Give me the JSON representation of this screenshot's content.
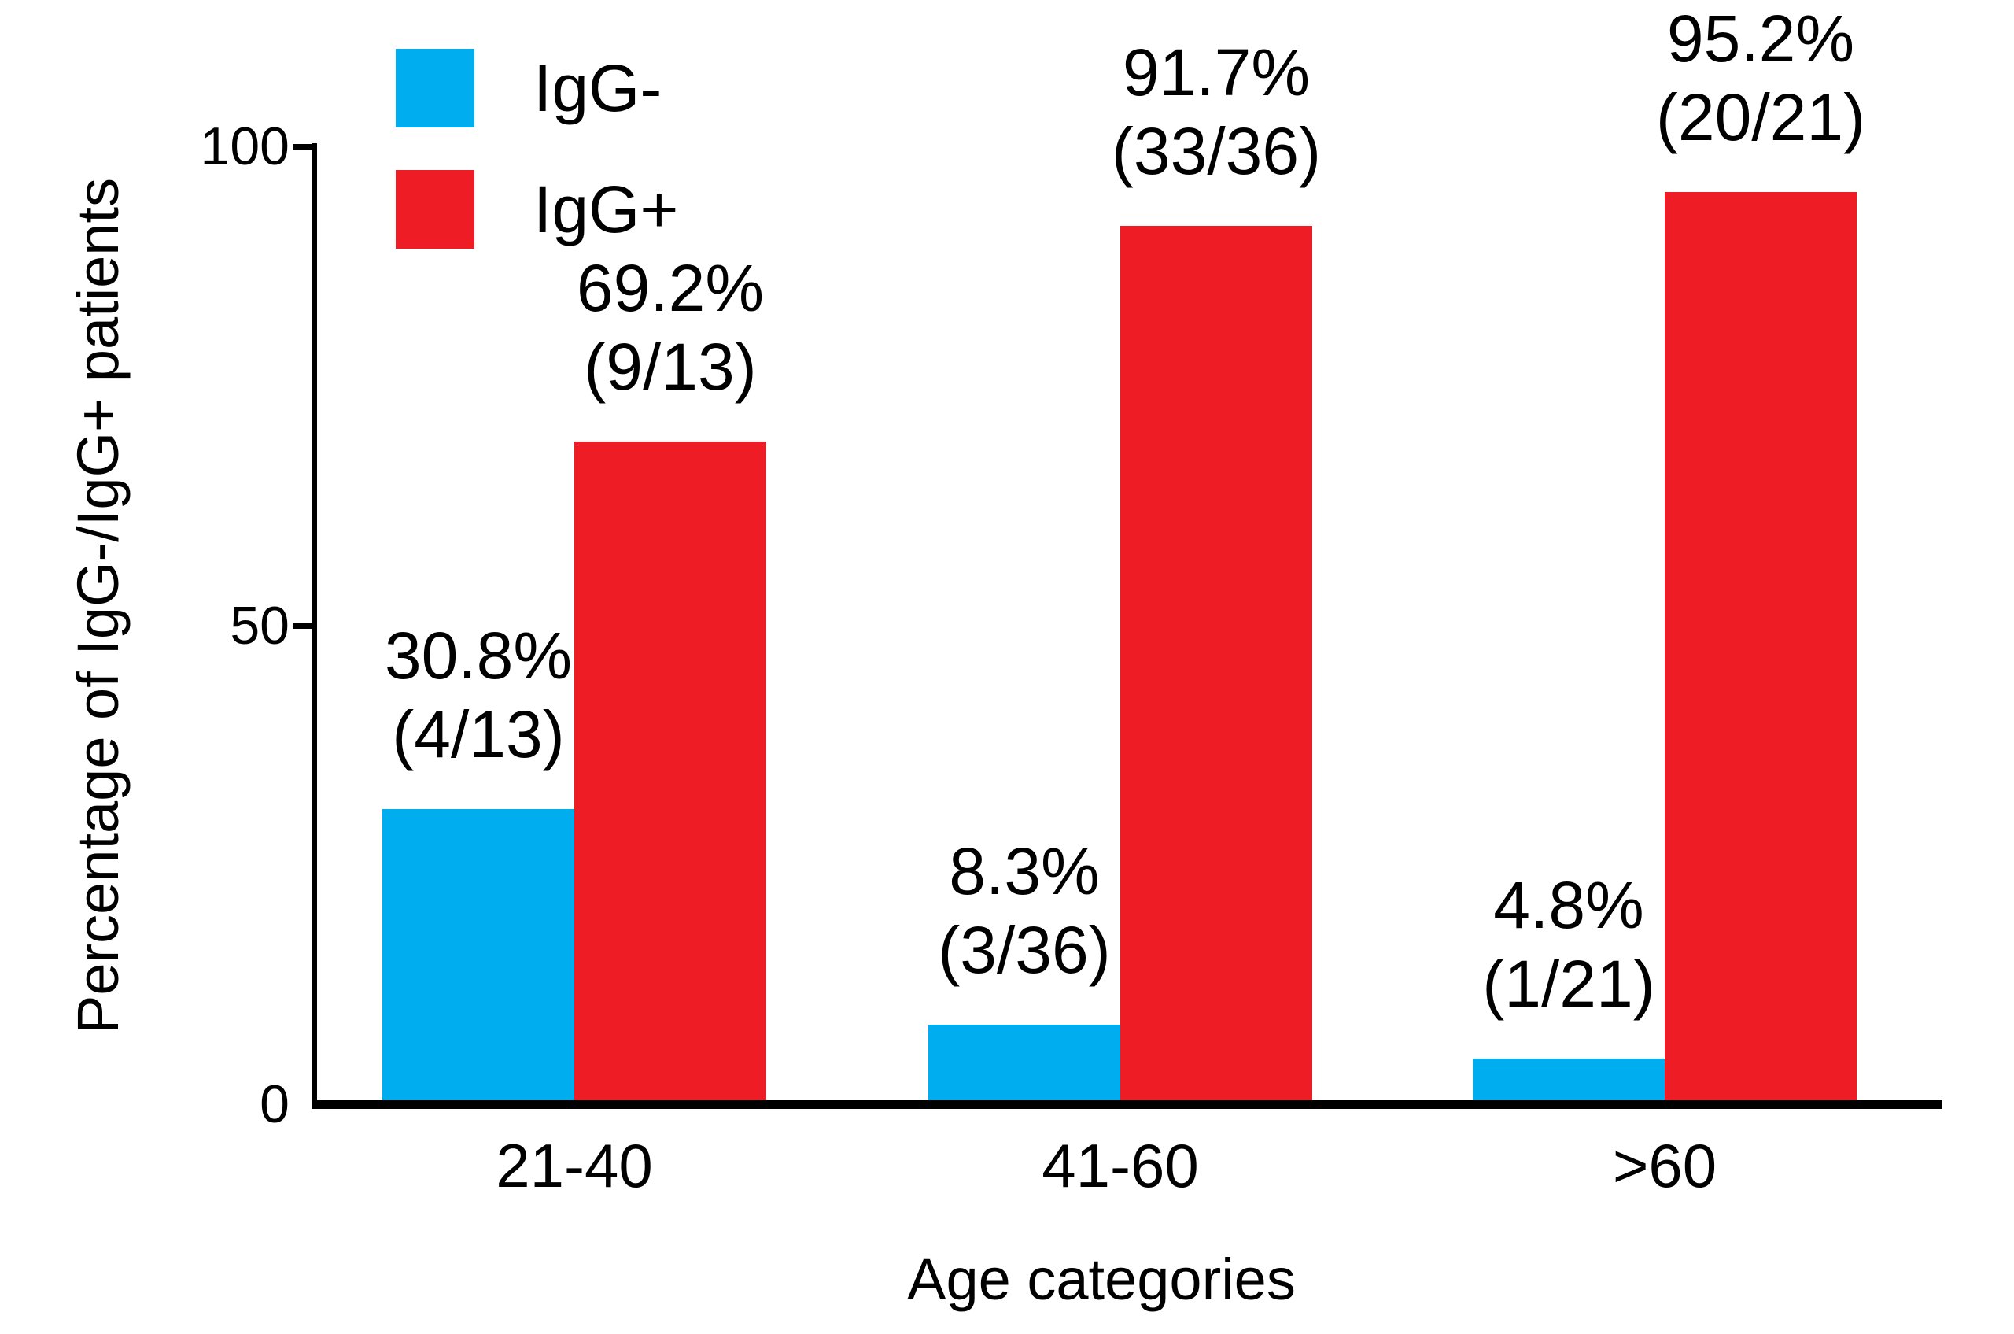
{
  "figure": {
    "background": "#ffffff",
    "text_color": "#000000",
    "axis_color": "#000000"
  },
  "legend": {
    "items": [
      {
        "label": "IgG-",
        "color": "#00ADEE"
      },
      {
        "label": "IgG+",
        "color": "#EE1C25"
      }
    ]
  },
  "y_axis": {
    "title": "Percentage of IgG-/IgG+ patients",
    "tick_labels": [
      "100",
      "50",
      "0"
    ],
    "tick_values": [
      100,
      50,
      0
    ]
  },
  "x_axis": {
    "title": "Age categories",
    "tick_labels": [
      "21-40",
      "41-60",
      ">60"
    ]
  },
  "chart_data": {
    "type": "bar",
    "categories": [
      "21-40",
      "41-60",
      ">60"
    ],
    "series": [
      {
        "name": "IgG-",
        "color": "#00ADEE",
        "values": [
          30.8,
          8.3,
          4.8
        ],
        "counts": [
          "4/13",
          "3/36",
          "1/21"
        ],
        "labels": [
          [
            "30.8%",
            "(4/13)"
          ],
          [
            "8.3%",
            "(3/36)"
          ],
          [
            "4.8%",
            "(1/21)"
          ]
        ]
      },
      {
        "name": "IgG+",
        "color": "#EE1C25",
        "values": [
          69.2,
          91.7,
          95.2
        ],
        "counts": [
          "9/13",
          "33/36",
          "20/21"
        ],
        "labels": [
          [
            "69.2%",
            "(9/13)"
          ],
          [
            "91.7%",
            "(33/36)"
          ],
          [
            "95.2%",
            "(20/21)"
          ]
        ]
      }
    ],
    "title": "",
    "xlabel": "Age categories",
    "ylabel": "Percentage of IgG-/IgG+ patients",
    "ylim": [
      0,
      100
    ],
    "yticks": [
      0,
      50,
      100
    ],
    "grid": false,
    "legend_position": "top-left"
  }
}
